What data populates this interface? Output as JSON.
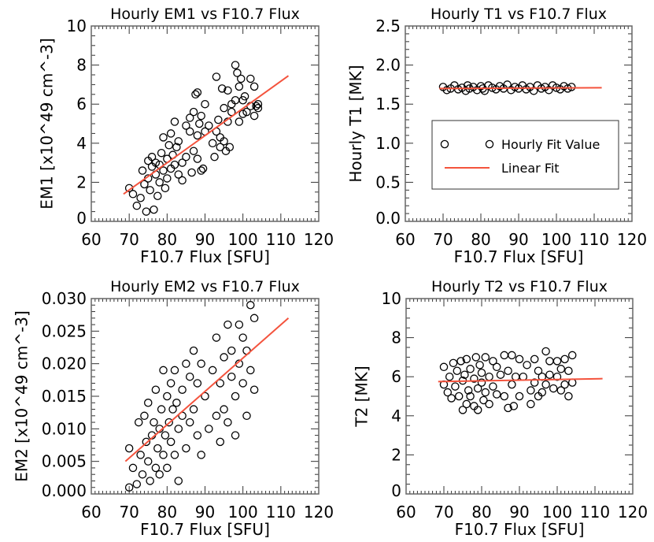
{
  "chart_data": [
    {
      "type": "scatter",
      "title": "Hourly EM1 vs F10.7 Flux",
      "xlabel": "F10.7 Flux [SFU]",
      "ylabel": "EM1 [x10^49 cm^-3]",
      "xlim": [
        60,
        120
      ],
      "ylim": [
        0,
        10
      ],
      "xticks": [
        "60",
        "70",
        "80",
        "90",
        "100",
        "110",
        "120"
      ],
      "yticks": [
        "0",
        "2",
        "4",
        "6",
        "8",
        "10"
      ],
      "fit": [
        [
          68.5,
          1.4
        ],
        [
          112,
          7.45
        ]
      ],
      "points": [
        [
          70,
          1.7
        ],
        [
          71,
          1.4
        ],
        [
          72,
          0.8
        ],
        [
          73,
          1.2
        ],
        [
          73.5,
          2.6
        ],
        [
          74,
          1.9
        ],
        [
          74.5,
          0.5
        ],
        [
          75,
          2.2
        ],
        [
          75,
          3.1
        ],
        [
          75.5,
          1.6
        ],
        [
          76,
          2.8
        ],
        [
          76,
          3.3
        ],
        [
          76.5,
          0.6
        ],
        [
          77,
          2.4
        ],
        [
          77,
          3.0
        ],
        [
          77.5,
          1.3
        ],
        [
          78,
          2.0
        ],
        [
          78,
          2.9
        ],
        [
          78.5,
          3.5
        ],
        [
          79,
          2.6
        ],
        [
          79,
          4.3
        ],
        [
          79.5,
          1.7
        ],
        [
          80,
          3.2
        ],
        [
          80,
          2.2
        ],
        [
          80.5,
          3.9
        ],
        [
          81,
          2.7
        ],
        [
          81,
          4.5
        ],
        [
          81.5,
          3.4
        ],
        [
          82,
          5.1
        ],
        [
          82,
          2.9
        ],
        [
          82.5,
          3.8
        ],
        [
          83,
          2.4
        ],
        [
          83,
          4.1
        ],
        [
          84,
          3.0
        ],
        [
          84,
          2.1
        ],
        [
          85,
          4.9
        ],
        [
          85,
          3.3
        ],
        [
          86,
          5.3
        ],
        [
          86,
          4.6
        ],
        [
          86.5,
          2.5
        ],
        [
          87,
          3.6
        ],
        [
          87,
          5.6
        ],
        [
          87.5,
          6.5
        ],
        [
          88,
          3.2
        ],
        [
          88,
          4.4
        ],
        [
          88,
          6.6
        ],
        [
          88.5,
          5.0
        ],
        [
          89,
          2.6
        ],
        [
          89,
          5.4
        ],
        [
          89.5,
          2.7
        ],
        [
          90,
          4.6
        ],
        [
          90,
          6.0
        ],
        [
          91,
          4.9
        ],
        [
          92,
          4.0
        ],
        [
          92.5,
          3.3
        ],
        [
          93,
          7.4
        ],
        [
          93,
          4.6
        ],
        [
          93.5,
          5.2
        ],
        [
          94,
          3.8
        ],
        [
          94,
          4.3
        ],
        [
          94.5,
          6.8
        ],
        [
          95,
          5.8
        ],
        [
          95,
          4.1
        ],
        [
          95.5,
          3.6
        ],
        [
          96,
          6.7
        ],
        [
          96,
          5.1
        ],
        [
          96.5,
          3.8
        ],
        [
          97,
          5.6
        ],
        [
          97,
          6.0
        ],
        [
          98,
          8.0
        ],
        [
          98,
          6.2
        ],
        [
          98.5,
          7.6
        ],
        [
          99,
          5.1
        ],
        [
          99,
          6.9
        ],
        [
          99.5,
          7.3
        ],
        [
          100,
          6.2
        ],
        [
          100,
          5.5
        ],
        [
          100.5,
          6.4
        ],
        [
          101,
          5.6
        ],
        [
          102,
          7.3
        ],
        [
          102,
          5.9
        ],
        [
          103,
          6.9
        ],
        [
          103,
          5.4
        ],
        [
          103.5,
          5.9
        ],
        [
          104,
          5.8
        ],
        [
          104,
          6.0
        ]
      ]
    },
    {
      "type": "scatter",
      "title": "Hourly T1 vs F10.7 Flux",
      "xlabel": "F10.7 Flux [SFU]",
      "ylabel": "Hourly T1 [MK]",
      "xlim": [
        60,
        120
      ],
      "ylim": [
        0,
        2.5
      ],
      "xticks": [
        "60",
        "70",
        "80",
        "90",
        "100",
        "110",
        "120"
      ],
      "yticks": [
        "0.0",
        "0.5",
        "1.0",
        "1.5",
        "2.0",
        "2.5"
      ],
      "fit": [
        [
          69,
          1.7
        ],
        [
          112,
          1.71
        ]
      ],
      "legend": {
        "placement": "center-right",
        "entries": [
          {
            "label": "Hourly Fit Value",
            "symbol": "circle"
          },
          {
            "label": "Linear Fit",
            "symbol": "line"
          }
        ]
      },
      "points": [
        [
          70,
          1.72
        ],
        [
          71,
          1.68
        ],
        [
          72,
          1.7
        ],
        [
          73,
          1.74
        ],
        [
          74,
          1.69
        ],
        [
          75,
          1.71
        ],
        [
          76,
          1.67
        ],
        [
          76.5,
          1.74
        ],
        [
          77,
          1.7
        ],
        [
          78,
          1.72
        ],
        [
          79,
          1.68
        ],
        [
          80,
          1.73
        ],
        [
          80.5,
          1.7
        ],
        [
          81,
          1.67
        ],
        [
          82,
          1.74
        ],
        [
          83,
          1.71
        ],
        [
          84,
          1.69
        ],
        [
          85,
          1.73
        ],
        [
          86,
          1.7
        ],
        [
          87,
          1.75
        ],
        [
          88,
          1.68
        ],
        [
          89,
          1.72
        ],
        [
          90,
          1.7
        ],
        [
          91,
          1.74
        ],
        [
          92,
          1.69
        ],
        [
          93,
          1.72
        ],
        [
          94,
          1.67
        ],
        [
          95,
          1.74
        ],
        [
          96,
          1.7
        ],
        [
          97,
          1.72
        ],
        [
          98,
          1.68
        ],
        [
          99,
          1.74
        ],
        [
          100,
          1.71
        ],
        [
          101,
          1.69
        ],
        [
          102,
          1.73
        ],
        [
          103,
          1.7
        ],
        [
          104,
          1.72
        ]
      ]
    },
    {
      "type": "scatter",
      "title": "Hourly EM2 vs F10.7 Flux",
      "xlabel": "F10.7 Flux [SFU]",
      "ylabel": "EM2 [x10^49 cm^-3]",
      "xlim": [
        60,
        120
      ],
      "ylim": [
        0,
        0.03
      ],
      "xticks": [
        "60",
        "70",
        "80",
        "90",
        "100",
        "110",
        "120"
      ],
      "yticks": [
        "0.000",
        "0.005",
        "0.010",
        "0.015",
        "0.020",
        "0.025",
        "0.030"
      ],
      "fit": [
        [
          69,
          0.005
        ],
        [
          112,
          0.027
        ]
      ],
      "points": [
        [
          70,
          0.007
        ],
        [
          70,
          0.001
        ],
        [
          71,
          0.004
        ],
        [
          72,
          0.0015
        ],
        [
          72.5,
          0.011
        ],
        [
          73,
          0.006
        ],
        [
          73.5,
          0.003
        ],
        [
          74,
          0.012
        ],
        [
          74.5,
          0.008
        ],
        [
          75,
          0.005
        ],
        [
          75,
          0.014
        ],
        [
          75.5,
          0.002
        ],
        [
          76,
          0.009
        ],
        [
          76.5,
          0.011
        ],
        [
          77,
          0.004
        ],
        [
          77,
          0.016
        ],
        [
          77.5,
          0.007
        ],
        [
          78,
          0.01
        ],
        [
          78,
          0.003
        ],
        [
          78.5,
          0.013
        ],
        [
          79,
          0.006
        ],
        [
          79,
          0.019
        ],
        [
          79.5,
          0.009
        ],
        [
          80,
          0.015
        ],
        [
          80,
          0.004
        ],
        [
          80.5,
          0.011
        ],
        [
          81,
          0.017
        ],
        [
          81,
          0.008
        ],
        [
          81.5,
          0.013
        ],
        [
          82,
          0.019
        ],
        [
          82,
          0.006
        ],
        [
          82.5,
          0.014
        ],
        [
          83,
          0.01
        ],
        [
          83,
          0.002
        ],
        [
          84,
          0.016
        ],
        [
          84,
          0.012
        ],
        [
          85,
          0.02
        ],
        [
          85,
          0.007
        ],
        [
          86,
          0.018
        ],
        [
          86,
          0.011
        ],
        [
          87,
          0.013
        ],
        [
          87,
          0.022
        ],
        [
          88,
          0.009
        ],
        [
          88,
          0.017
        ],
        [
          89,
          0.02
        ],
        [
          89,
          0.006
        ],
        [
          90,
          0.015
        ],
        [
          91,
          0.01
        ],
        [
          92,
          0.019
        ],
        [
          93,
          0.012
        ],
        [
          93,
          0.024
        ],
        [
          94,
          0.017
        ],
        [
          94,
          0.008
        ],
        [
          95,
          0.021
        ],
        [
          95,
          0.013
        ],
        [
          96,
          0.026
        ],
        [
          96,
          0.011
        ],
        [
          97,
          0.018
        ],
        [
          97,
          0.022
        ],
        [
          98,
          0.015
        ],
        [
          98,
          0.009
        ],
        [
          99,
          0.02
        ],
        [
          99,
          0.026
        ],
        [
          100,
          0.017
        ],
        [
          100,
          0.024
        ],
        [
          101,
          0.012
        ],
        [
          101,
          0.022
        ],
        [
          102,
          0.029
        ],
        [
          102,
          0.019
        ],
        [
          103,
          0.027
        ],
        [
          103,
          0.016
        ]
      ]
    },
    {
      "type": "scatter",
      "title": "Hourly T2 vs F10.7 Flux",
      "xlabel": "F10.7 Flux [SFU]",
      "ylabel": "T2 [MK]",
      "xlim": [
        60,
        120
      ],
      "ylim": [
        0,
        10
      ],
      "xticks": [
        "60",
        "70",
        "80",
        "90",
        "100",
        "110",
        "120"
      ],
      "yticks": [
        "0",
        "2",
        "4",
        "6",
        "8",
        "10"
      ],
      "fit": [
        [
          68.5,
          5.75
        ],
        [
          112,
          5.9
        ]
      ],
      "points": [
        [
          70,
          6.5
        ],
        [
          70,
          5.6
        ],
        [
          71,
          5.2
        ],
        [
          71.5,
          6.0
        ],
        [
          72,
          4.9
        ],
        [
          72.5,
          6.7
        ],
        [
          73,
          5.5
        ],
        [
          73.5,
          6.3
        ],
        [
          74,
          5.0
        ],
        [
          74.5,
          6.8
        ],
        [
          75,
          4.3
        ],
        [
          75,
          5.8
        ],
        [
          75.5,
          6.1
        ],
        [
          76,
          4.6
        ],
        [
          76,
          6.9
        ],
        [
          76.5,
          5.3
        ],
        [
          77,
          6.4
        ],
        [
          77,
          5.0
        ],
        [
          78,
          4.5
        ],
        [
          78,
          5.9
        ],
        [
          78.5,
          7.0
        ],
        [
          79,
          5.4
        ],
        [
          79,
          4.3
        ],
        [
          79.5,
          6.6
        ],
        [
          80,
          5.7
        ],
        [
          80,
          6.2
        ],
        [
          80.5,
          4.8
        ],
        [
          81,
          7.0
        ],
        [
          81,
          5.2
        ],
        [
          82,
          6.0
        ],
        [
          82,
          4.6
        ],
        [
          83,
          6.8
        ],
        [
          83,
          5.5
        ],
        [
          84,
          5.1
        ],
        [
          84,
          6.5
        ],
        [
          85,
          6.1
        ],
        [
          86,
          7.1
        ],
        [
          86,
          5.0
        ],
        [
          87,
          4.4
        ],
        [
          87,
          6.3
        ],
        [
          88,
          5.6
        ],
        [
          88,
          7.1
        ],
        [
          88.5,
          4.5
        ],
        [
          89,
          6.0
        ],
        [
          90,
          6.9
        ],
        [
          90,
          5.0
        ],
        [
          91,
          6.0
        ],
        [
          92,
          6.6
        ],
        [
          93,
          5.3
        ],
        [
          93,
          4.6
        ],
        [
          94,
          6.9
        ],
        [
          94,
          5.7
        ],
        [
          95,
          5.0
        ],
        [
          95,
          6.3
        ],
        [
          96,
          6.0
        ],
        [
          96,
          5.2
        ],
        [
          97,
          7.3
        ],
        [
          97,
          5.6
        ],
        [
          98,
          6.1
        ],
        [
          98,
          6.8
        ],
        [
          99,
          5.4
        ],
        [
          100,
          6.0
        ],
        [
          100,
          6.8
        ],
        [
          101,
          5.3
        ],
        [
          101,
          6.4
        ],
        [
          102,
          6.9
        ],
        [
          102,
          5.6
        ],
        [
          103,
          5.0
        ],
        [
          103,
          6.3
        ],
        [
          104,
          7.1
        ],
        [
          104,
          5.7
        ]
      ]
    }
  ],
  "colors": {
    "fit_line": "#f4533d",
    "points": "#000000",
    "axes": "#555555"
  }
}
